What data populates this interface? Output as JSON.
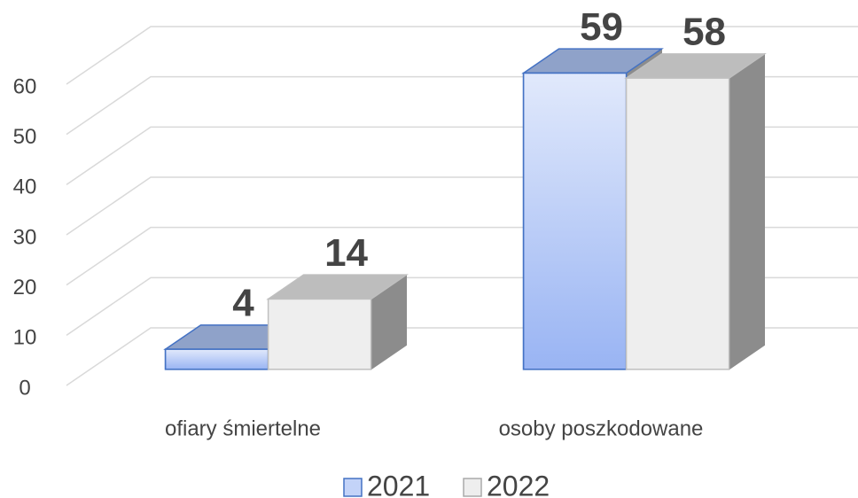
{
  "chart_data": {
    "type": "bar3d",
    "categories": [
      "ofiary śmiertelne",
      "osoby poszkodowane"
    ],
    "series": [
      {
        "name": "2021",
        "color": "#c3d3f8",
        "values": [
          4,
          59
        ]
      },
      {
        "name": "2022",
        "color": "#eeeeee",
        "values": [
          14,
          58
        ]
      }
    ],
    "ylim": [
      0,
      60
    ],
    "yticks": [
      0,
      10,
      20,
      30,
      40,
      50,
      60
    ],
    "grid": true,
    "legend": "bottom"
  }
}
